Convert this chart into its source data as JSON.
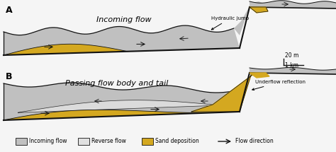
{
  "fig_width": 4.74,
  "fig_height": 2.15,
  "dpi": 100,
  "bg_color": "#f5f5f5",
  "incoming_flow_color": "#c0c0c0",
  "reverse_flow_color": "#e0e0e0",
  "sand_color": "#d4a820",
  "outline_color": "#111111",
  "label_A": "A",
  "label_B": "B",
  "title_A": "Incoming flow",
  "title_B": "Passing flow body and tail",
  "annotation_A": "Hydraulic jump",
  "annotation_B": "Underflow reflection",
  "scale_v": "20 m",
  "scale_h": "1 km",
  "legend_items": [
    "Incoming flow",
    "Reverse flow",
    "Sand deposition",
    "Flow direction"
  ]
}
